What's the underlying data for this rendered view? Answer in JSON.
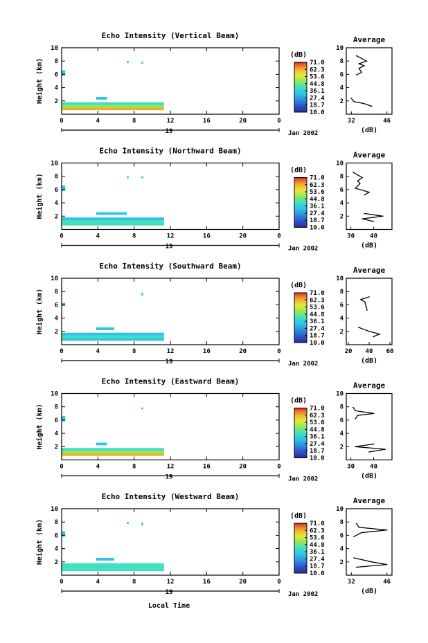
{
  "figure": {
    "xlabel": "Local Time",
    "date_label": "Jan 2002",
    "colorbar_unit": "(dB)",
    "colorbar_ticks": [
      "71.0",
      "62.3",
      "53.6",
      "44.8",
      "36.1",
      "27.4",
      "18.7",
      "10.0"
    ],
    "colorbar_colors": [
      "#2b2c8f",
      "#2f52c8",
      "#2f8ee0",
      "#2fc2e8",
      "#3fe0c0",
      "#8ee85a",
      "#e8e83a",
      "#f0b030",
      "#ec6a2a",
      "#d6282a"
    ],
    "main_x_ticks": [
      "0",
      "4",
      "8",
      "12",
      "16",
      "20",
      "0"
    ],
    "main_y_ticks": [
      "2",
      "4",
      "6",
      "8",
      "10"
    ],
    "ylabel": "Height (km)",
    "avg_title": "Average",
    "avg_xlabel": "(dB)"
  },
  "chart_data": [
    {
      "type": "heatmap",
      "title": "Echo Intensity (Vertical Beam)",
      "ylabel": "Height (km)",
      "xlabel": "",
      "xlim": [
        0,
        24
      ],
      "ylim": [
        0,
        10
      ],
      "day_marker": "19",
      "colorbar_range": [
        10.0,
        71.0
      ],
      "cells": [
        {
          "x": [
            0,
            11.3
          ],
          "y": [
            0.6,
            1.0
          ],
          "v": 58
        },
        {
          "x": [
            0,
            11.3
          ],
          "y": [
            1.0,
            1.4
          ],
          "v": 42
        },
        {
          "x": [
            0,
            11.3
          ],
          "y": [
            1.4,
            1.8
          ],
          "v": 36
        },
        {
          "x": [
            3.8,
            5.0
          ],
          "y": [
            2.2,
            2.6
          ],
          "v": 30
        },
        {
          "x": [
            0,
            0.4
          ],
          "y": [
            5.8,
            6.6
          ],
          "v": 30
        },
        {
          "x": [
            7.2,
            7.4
          ],
          "y": [
            7.7,
            8.0
          ],
          "v": 30
        },
        {
          "x": [
            8.8,
            9.0
          ],
          "y": [
            7.6,
            7.9
          ],
          "v": 30
        }
      ],
      "profile": {
        "xticks": [
          32,
          46
        ],
        "xlim": [
          30,
          48
        ],
        "x": [
          32,
          33,
          37,
          40,
          34,
          36,
          35,
          37,
          35,
          38,
          34
        ],
        "y": [
          2.4,
          1.9,
          1.6,
          1.2,
          5.9,
          6.3,
          6.9,
          7.3,
          7.6,
          8.0,
          8.8
        ]
      }
    },
    {
      "type": "heatmap",
      "title": "Echo Intensity (Northward Beam)",
      "ylabel": "Height (km)",
      "xlabel": "",
      "xlim": [
        0,
        24
      ],
      "ylim": [
        0,
        10
      ],
      "day_marker": "19",
      "colorbar_range": [
        10.0,
        71.0
      ],
      "cells": [
        {
          "x": [
            0,
            11.3
          ],
          "y": [
            0.6,
            1.0
          ],
          "v": 36
        },
        {
          "x": [
            0,
            11.3
          ],
          "y": [
            1.0,
            1.4
          ],
          "v": 40
        },
        {
          "x": [
            0,
            11.3
          ],
          "y": [
            1.4,
            1.8
          ],
          "v": 34
        },
        {
          "x": [
            3.8,
            7.2
          ],
          "y": [
            2.2,
            2.6
          ],
          "v": 30
        },
        {
          "x": [
            0,
            0.4
          ],
          "y": [
            5.8,
            6.6
          ],
          "v": 30
        },
        {
          "x": [
            7.2,
            7.4
          ],
          "y": [
            7.7,
            8.0
          ],
          "v": 30
        },
        {
          "x": [
            8.8,
            9.0
          ],
          "y": [
            7.7,
            8.0
          ],
          "v": 30
        }
      ],
      "profile": {
        "xticks": [
          30,
          40
        ],
        "xlim": [
          28,
          48
        ],
        "x": [
          36,
          44,
          35,
          40,
          36,
          38,
          32,
          34,
          33,
          35,
          31
        ],
        "y": [
          2.4,
          2.0,
          1.6,
          1.2,
          5.2,
          5.6,
          6.2,
          6.9,
          7.3,
          7.8,
          8.6
        ]
      }
    },
    {
      "type": "heatmap",
      "title": "Echo Intensity (Southward Beam)",
      "ylabel": "Height (km)",
      "xlabel": "",
      "xlim": [
        0,
        24
      ],
      "ylim": [
        0,
        10
      ],
      "day_marker": "19",
      "colorbar_range": [
        10.0,
        71.0
      ],
      "cells": [
        {
          "x": [
            0,
            11.3
          ],
          "y": [
            0.6,
            1.0
          ],
          "v": 34
        },
        {
          "x": [
            0,
            11.3
          ],
          "y": [
            1.0,
            1.4
          ],
          "v": 40
        },
        {
          "x": [
            0,
            11.3
          ],
          "y": [
            1.4,
            1.8
          ],
          "v": 34
        },
        {
          "x": [
            3.8,
            5.8
          ],
          "y": [
            2.2,
            2.6
          ],
          "v": 30
        },
        {
          "x": [
            0,
            0.4
          ],
          "y": [
            5.8,
            6.3
          ],
          "v": 30
        },
        {
          "x": [
            8.8,
            9.0
          ],
          "y": [
            7.4,
            7.8
          ],
          "v": 30
        }
      ],
      "profile": {
        "xticks": [
          20,
          40,
          60
        ],
        "xlim": [
          18,
          62
        ],
        "x": [
          30,
          40,
          50,
          44,
          38,
          37,
          36,
          32,
          40
        ],
        "y": [
          2.6,
          2.0,
          1.6,
          1.2,
          5.2,
          5.8,
          6.4,
          6.8,
          7.2
        ]
      }
    },
    {
      "type": "heatmap",
      "title": "Echo Intensity (Eastward Beam)",
      "ylabel": "Height (km)",
      "xlabel": "",
      "xlim": [
        0,
        24
      ],
      "ylim": [
        0,
        10
      ],
      "day_marker": "19",
      "colorbar_range": [
        10.0,
        71.0
      ],
      "cells": [
        {
          "x": [
            0,
            11.3
          ],
          "y": [
            0.6,
            1.0
          ],
          "v": 58
        },
        {
          "x": [
            0,
            11.3
          ],
          "y": [
            1.0,
            1.4
          ],
          "v": 42
        },
        {
          "x": [
            0,
            11.3
          ],
          "y": [
            1.4,
            1.8
          ],
          "v": 36
        },
        {
          "x": [
            3.8,
            5.0
          ],
          "y": [
            2.2,
            2.6
          ],
          "v": 30
        },
        {
          "x": [
            0,
            0.4
          ],
          "y": [
            5.8,
            6.6
          ],
          "v": 30
        },
        {
          "x": [
            8.8,
            9.0
          ],
          "y": [
            7.6,
            7.9
          ],
          "v": 30
        }
      ],
      "profile": {
        "xticks": [
          30,
          40
        ],
        "xlim": [
          28,
          48
        ],
        "x": [
          40,
          32,
          45,
          38,
          32,
          33,
          40,
          32,
          31
        ],
        "y": [
          2.4,
          2.0,
          1.6,
          1.2,
          6.2,
          6.7,
          7.0,
          7.4,
          7.9
        ]
      }
    },
    {
      "type": "heatmap",
      "title": "Echo Intensity (Westward Beam)",
      "ylabel": "Height (km)",
      "xlabel": "Local Time",
      "xlim": [
        0,
        24
      ],
      "ylim": [
        0,
        10
      ],
      "day_marker": "19",
      "colorbar_range": [
        10.0,
        71.0
      ],
      "cells": [
        {
          "x": [
            0,
            11.3
          ],
          "y": [
            0.6,
            1.0
          ],
          "v": 36
        },
        {
          "x": [
            0,
            11.3
          ],
          "y": [
            1.0,
            1.4
          ],
          "v": 40
        },
        {
          "x": [
            0,
            11.3
          ],
          "y": [
            1.4,
            1.8
          ],
          "v": 36
        },
        {
          "x": [
            3.8,
            5.8
          ],
          "y": [
            2.2,
            2.6
          ],
          "v": 30
        },
        {
          "x": [
            0,
            0.4
          ],
          "y": [
            5.8,
            6.6
          ],
          "v": 30
        },
        {
          "x": [
            7.2,
            7.4
          ],
          "y": [
            7.7,
            8.0
          ],
          "v": 30
        },
        {
          "x": [
            8.8,
            9.0
          ],
          "y": [
            7.5,
            7.9
          ],
          "v": 30
        }
      ],
      "profile": {
        "xticks": [
          32,
          46
        ],
        "xlim": [
          30,
          48
        ],
        "x": [
          33,
          40,
          46,
          34,
          33,
          36,
          46,
          35,
          34
        ],
        "y": [
          2.6,
          2.0,
          1.6,
          1.2,
          5.8,
          6.4,
          6.8,
          7.2,
          7.8
        ]
      }
    }
  ]
}
